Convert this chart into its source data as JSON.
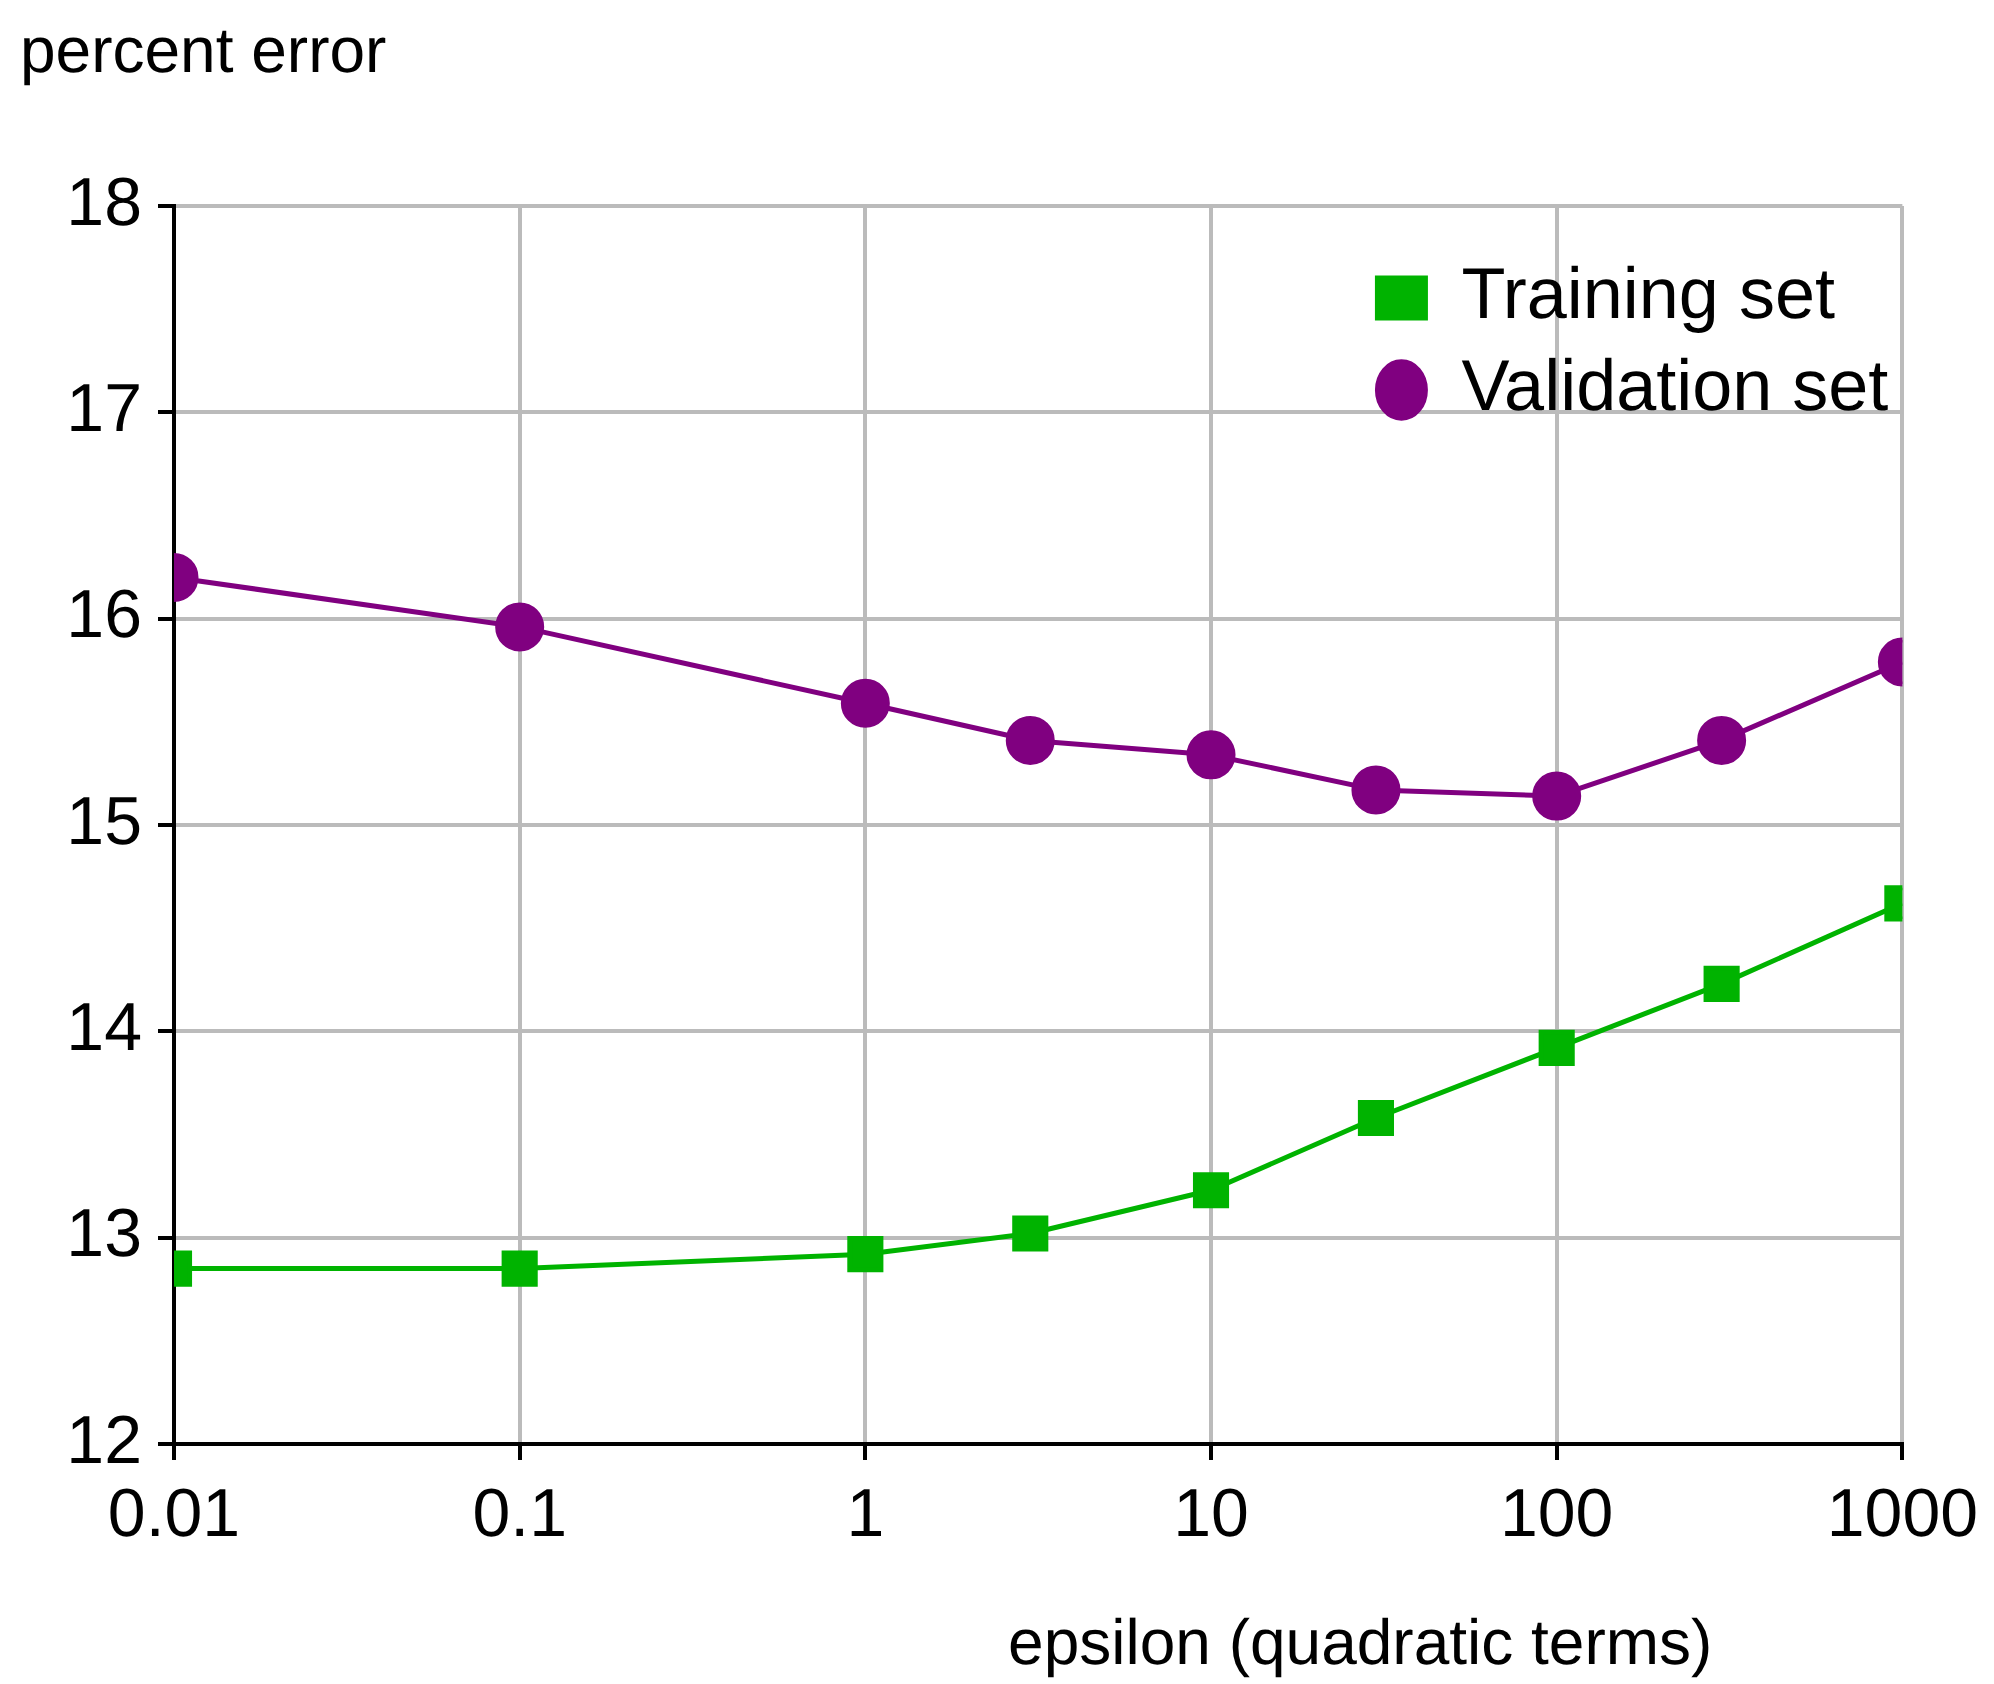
{
  "chart_data": {
    "type": "line",
    "xlabel": "epsilon (quadratic terms)",
    "ylabel": "percent error",
    "log": "x",
    "xlim": [
      0.01,
      1000
    ],
    "xticks": [
      0.01,
      0.1,
      1,
      10,
      100,
      1000
    ],
    "ylim": [
      12,
      18
    ],
    "yticks": [
      12,
      13,
      14,
      15,
      16,
      17,
      18
    ],
    "grid": true,
    "legend": "top right",
    "x": [
      0.01,
      0.1,
      1,
      3,
      10,
      30,
      100,
      300,
      1000
    ],
    "series": [
      {
        "name": "Training set",
        "color": "#00b300",
        "marker": "square",
        "values": [
          12.85,
          12.85,
          12.92,
          13.02,
          13.23,
          13.58,
          13.92,
          14.23,
          14.62
        ]
      },
      {
        "name": "Validation set",
        "color": "#800080",
        "marker": "circle",
        "values": [
          16.2,
          15.96,
          15.59,
          15.41,
          15.34,
          15.17,
          15.14,
          15.41,
          15.79
        ]
      }
    ]
  }
}
